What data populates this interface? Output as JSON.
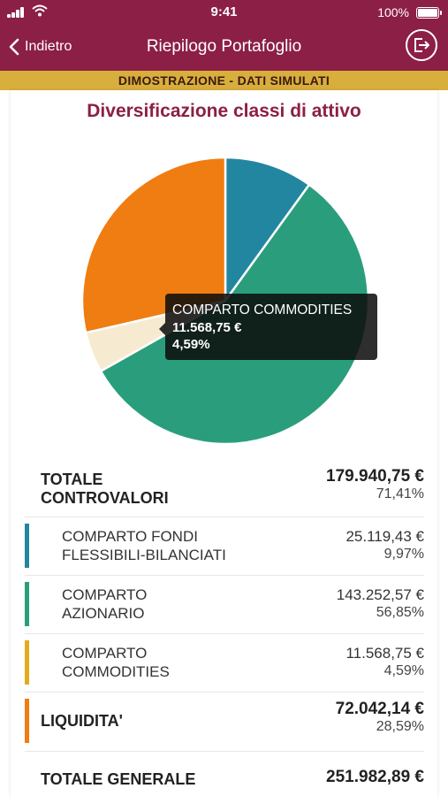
{
  "status_bar": {
    "time": "9:41",
    "battery": "100%"
  },
  "nav": {
    "back_label": "Indietro",
    "title": "Riepilogo Portafoglio"
  },
  "banner": "DIMOSTRAZIONE - DATI SIMULATI",
  "chart_title": "Diversificazione classi di attivo",
  "colors": {
    "brand": "#8c1f46",
    "banner": "#d8ae3d",
    "fondi": "#2286a1",
    "azionario": "#2a9e7c",
    "commodities": "#f6ead0",
    "commodities_bar": "#e3aa1e",
    "liquidita": "#ef7d12"
  },
  "chart_data": {
    "type": "pie",
    "title": "Diversificazione classi di attivo",
    "slices": [
      {
        "label": "COMPARTO FONDI FLESSIBILI-BILANCIATI",
        "value": 25119.43,
        "percent": 9.97,
        "color": "#2286a1"
      },
      {
        "label": "COMPARTO AZIONARIO",
        "value": 143252.57,
        "percent": 56.85,
        "color": "#2a9e7c"
      },
      {
        "label": "COMPARTO COMMODITIES",
        "value": 11568.75,
        "percent": 4.59,
        "color": "#f6ead0"
      },
      {
        "label": "LIQUIDITA'",
        "value": 72042.14,
        "percent": 28.59,
        "color": "#ef7d12"
      }
    ]
  },
  "tooltip": {
    "name": "COMPARTO COMMODITIES",
    "value": "11.568,75 €",
    "percent": "4,59%"
  },
  "table": {
    "totale_controvalori": {
      "label_1": "TOTALE",
      "label_2": "CONTROVALORI",
      "value": "179.940,75 €",
      "percent": "71,41%"
    },
    "fondi": {
      "label_1": "COMPARTO FONDI",
      "label_2": "FLESSIBILI-BILANCIATI",
      "value": "25.119,43 €",
      "percent": "9,97%"
    },
    "azionario": {
      "label_1": "COMPARTO",
      "label_2": "AZIONARIO",
      "value": "143.252,57 €",
      "percent": "56,85%"
    },
    "commodities": {
      "label_1": "COMPARTO",
      "label_2": "COMMODITIES",
      "value": "11.568,75 €",
      "percent": "4,59%"
    },
    "liquidita": {
      "label": "LIQUIDITA'",
      "value": "72.042,14 €",
      "percent": "28,59%"
    },
    "totale_generale": {
      "label": "TOTALE GENERALE",
      "value": "251.982,89 €"
    }
  }
}
